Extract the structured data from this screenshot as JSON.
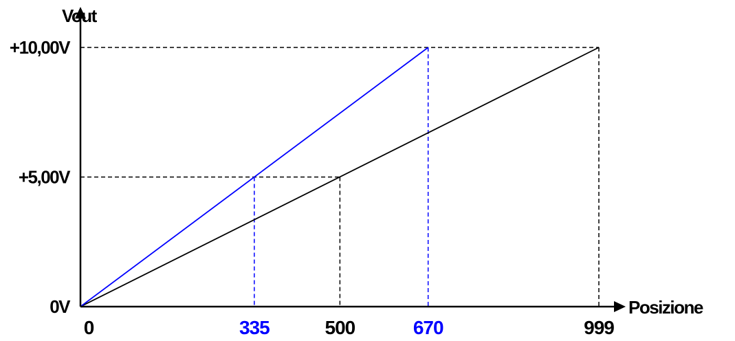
{
  "chart_data": {
    "type": "line",
    "title": "",
    "xlabel": "Posizione",
    "ylabel": "Vout",
    "xlim": [
      0,
      999
    ],
    "ylim": [
      0,
      10
    ],
    "grid": false,
    "y_ticks": [
      {
        "value": 0,
        "label": "0V"
      },
      {
        "value": 5,
        "label": "+5,00V"
      },
      {
        "value": 10,
        "label": "+10,00V"
      }
    ],
    "x_ticks": [
      {
        "value": 0,
        "label": "0",
        "color": "#000000"
      },
      {
        "value": 335,
        "label": "335",
        "color": "#0000ff"
      },
      {
        "value": 500,
        "label": "500",
        "color": "#000000"
      },
      {
        "value": 670,
        "label": "670",
        "color": "#0000ff"
      },
      {
        "value": 999,
        "label": "999",
        "color": "#000000"
      }
    ],
    "series": [
      {
        "color": "#000000",
        "points": [
          [
            0,
            0
          ],
          [
            999,
            10
          ]
        ]
      },
      {
        "color": "#0000ff",
        "points": [
          [
            0,
            0
          ],
          [
            670,
            10
          ]
        ]
      }
    ],
    "reference_lines": [
      {
        "from": [
          0,
          10
        ],
        "to": [
          999,
          10
        ],
        "color": "#000000"
      },
      {
        "from": [
          999,
          10
        ],
        "to": [
          999,
          0
        ],
        "color": "#000000"
      },
      {
        "from": [
          0,
          5
        ],
        "to": [
          500,
          5
        ],
        "color": "#000000"
      },
      {
        "from": [
          500,
          5
        ],
        "to": [
          500,
          0
        ],
        "color": "#000000"
      },
      {
        "from": [
          335,
          5
        ],
        "to": [
          335,
          0
        ],
        "color": "#0000ff"
      },
      {
        "from": [
          670,
          10
        ],
        "to": [
          670,
          0
        ],
        "color": "#0000ff"
      }
    ]
  }
}
